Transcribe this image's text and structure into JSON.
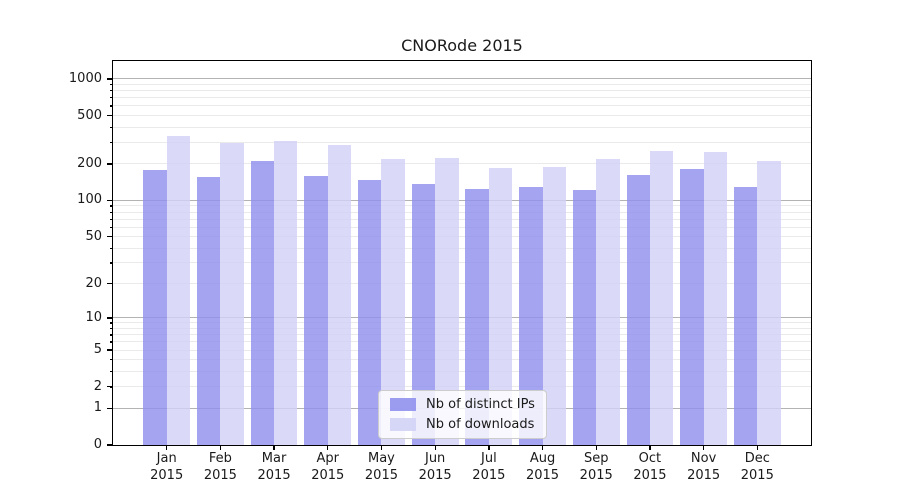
{
  "title": "CNORode 2015",
  "colors": {
    "bar_distinct_ips": "#9090ee",
    "bar_downloads": "#d2d2f6",
    "major_gridline": "#b3b3b3",
    "minor_gridline": "#eaeaea",
    "axis": "#000000",
    "text": "#1a1a1a"
  },
  "legend": {
    "items": [
      {
        "label": "Nb of distinct IPs"
      },
      {
        "label": "Nb of downloads"
      }
    ]
  },
  "chart_data": {
    "type": "bar",
    "title": "CNORode 2015",
    "categories": [
      "Jan",
      "Feb",
      "Mar",
      "Apr",
      "May",
      "Jun",
      "Jul",
      "Aug",
      "Sep",
      "Oct",
      "Nov",
      "Dec"
    ],
    "year": "2015",
    "series": [
      {
        "name": "Nb of distinct IPs",
        "color": "#9090ee",
        "values": [
          178,
          156,
          212,
          160,
          147,
          137,
          124,
          128,
          122,
          162,
          181,
          129
        ]
      },
      {
        "name": "Nb of downloads",
        "color": "#d2d2f6",
        "values": [
          341,
          296,
          310,
          287,
          219,
          224,
          184,
          188,
          220,
          257,
          250,
          213
        ]
      }
    ],
    "xlabel": "",
    "ylabel": "",
    "y_ticks": [
      0,
      1,
      2,
      5,
      10,
      20,
      50,
      100,
      200,
      500,
      1000
    ],
    "y_scale": "log1p",
    "ylim": [
      0,
      1400
    ],
    "grid": true,
    "grid_major_values": [
      1,
      10,
      100,
      1000
    ],
    "legend_position": "lower center"
  }
}
